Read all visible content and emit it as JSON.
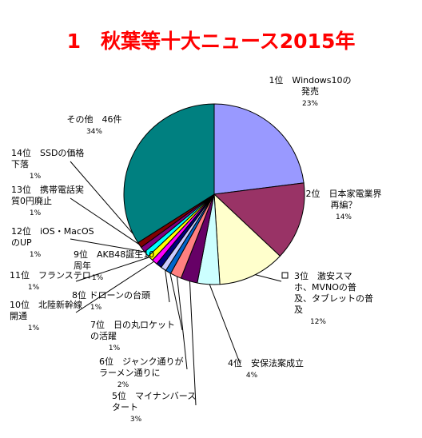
{
  "chart_data": {
    "type": "pie",
    "title": "1　秋葉等十大ニュース2015年",
    "unit": "%",
    "slices": [
      {
        "name": "1位　Windows10の発売",
        "lines": [
          "1位　Windows10の",
          "発売"
        ],
        "value": 23,
        "pct_label": "23%",
        "color": "#9999ff"
      },
      {
        "name": "2位　日本家電業界再編？",
        "lines": [
          "2位　日本家電業界",
          "再編？"
        ],
        "value": 14,
        "pct_label": "14%",
        "color": "#993366"
      },
      {
        "name": "3位　激安スマホ、MVNOの普及、タブレットの普及",
        "lines": [
          "3位　激安スマ",
          "ホ、MVNOの普",
          "及、タブレットの普",
          "及"
        ],
        "value": 12,
        "pct_label": "12%",
        "color": "#ffffcc"
      },
      {
        "name": "4位　安保法案成立",
        "lines": [
          "4位　安保法案成立"
        ],
        "value": 4,
        "pct_label": "4%",
        "color": "#ccffff"
      },
      {
        "name": "5位　マイナンバースタート",
        "lines": [
          "5位　マイナンバース",
          "タート"
        ],
        "value": 3,
        "pct_label": "3%",
        "color": "#660066"
      },
      {
        "name": "6位　ジャンク通りがラーメン通りに",
        "lines": [
          "6位　ジャンク通りが",
          "ラーメン通りに"
        ],
        "value": 2,
        "pct_label": "2%",
        "color": "#ff8080"
      },
      {
        "name": "7位　日の丸ロケットの活躍",
        "lines": [
          "7位　日の丸ロケット",
          "の活躍"
        ],
        "value": 1,
        "pct_label": "1%",
        "color": "#0066cc"
      },
      {
        "name": "8位 ドローンの台頭",
        "lines": [
          "8位 ドローンの台頭"
        ],
        "value": 1,
        "pct_label": "1%",
        "color": "#ccccff"
      },
      {
        "name": "9位　AKB48誕生10周年",
        "lines": [
          "9位　AKB48誕生10",
          "周年"
        ],
        "value": 1,
        "pct_label": "1%",
        "color": "#000080"
      },
      {
        "name": "10位　北陸新幹線開通",
        "lines": [
          "10位　北陸新幹線",
          "開通"
        ],
        "value": 1,
        "pct_label": "1%",
        "color": "#ff00ff"
      },
      {
        "name": "11位　フランステロ",
        "lines": [
          "11位　フランステロ"
        ],
        "value": 1,
        "pct_label": "1%",
        "color": "#ffff00"
      },
      {
        "name": "12位　iOS・MacOSのUP",
        "lines": [
          "12位　iOS・MacOS",
          "のUP"
        ],
        "value": 1,
        "pct_label": "1%",
        "color": "#00ffff"
      },
      {
        "name": "13位　携帯電話実質0円廃止",
        "lines": [
          "13位　携帯電話実",
          "質0円廃止"
        ],
        "value": 1,
        "pct_label": "1%",
        "color": "#800080"
      },
      {
        "name": "14位　SSDの価格下落",
        "lines": [
          "14位　SSDの価格",
          "下落"
        ],
        "value": 1,
        "pct_label": "1%",
        "color": "#800000"
      },
      {
        "name": "その他　46件",
        "lines": [
          "その他　46件"
        ],
        "value": 34,
        "pct_label": "34%",
        "color": "#008080"
      }
    ]
  }
}
